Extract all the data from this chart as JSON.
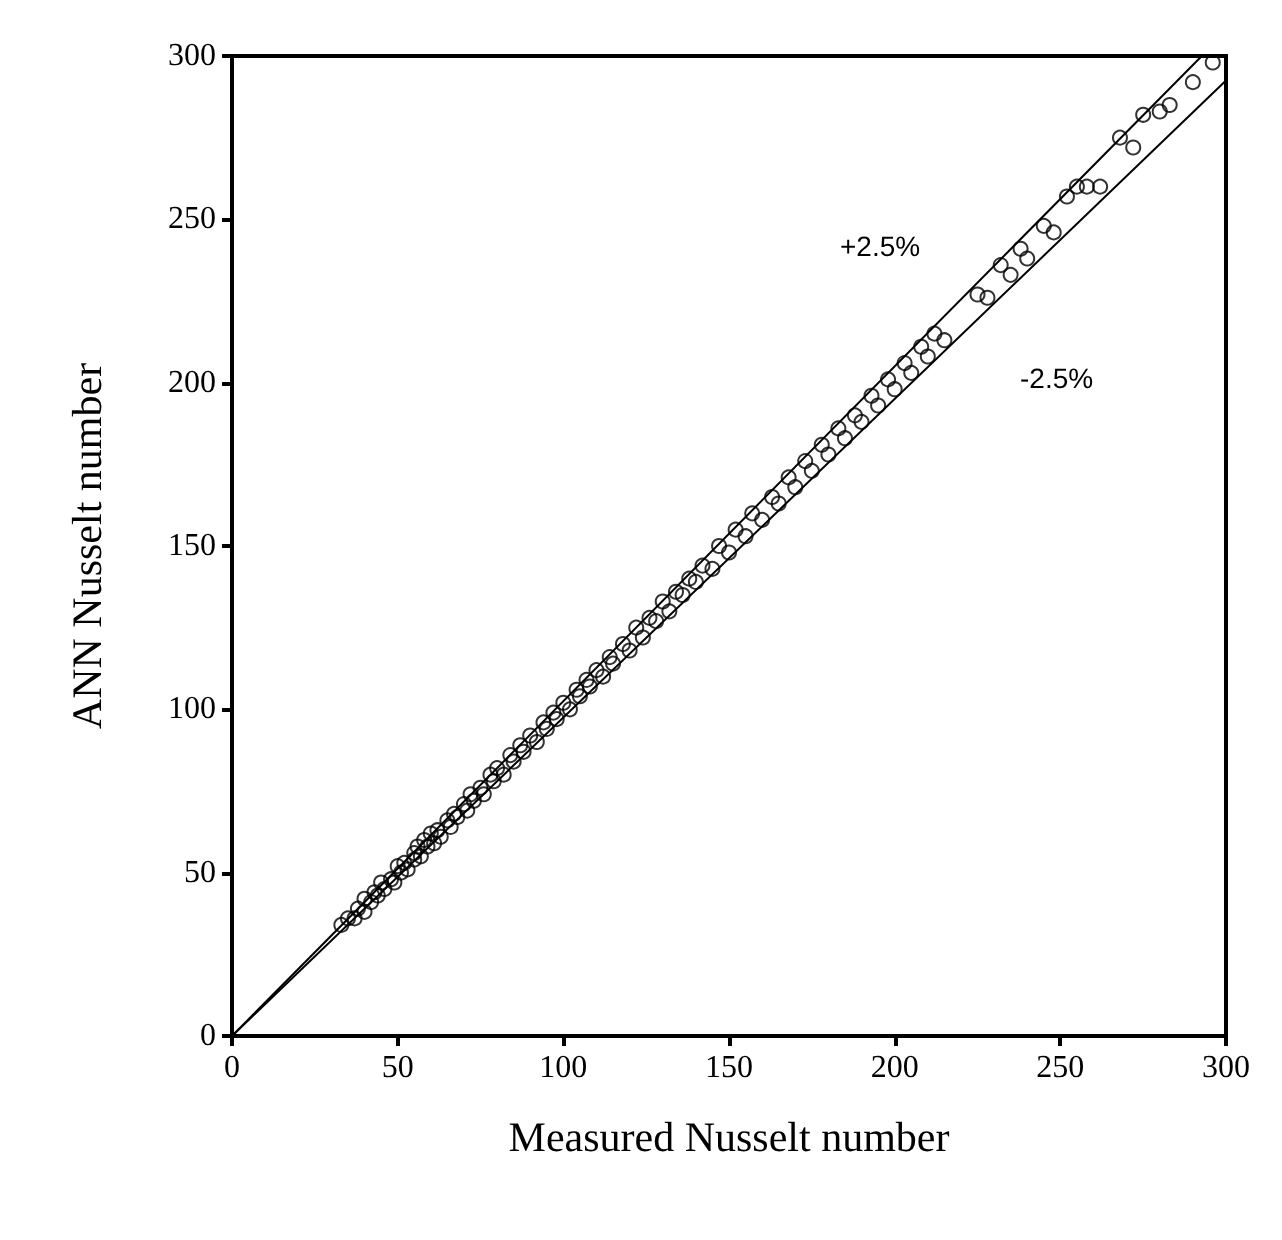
{
  "chart_data": {
    "type": "scatter",
    "xlabel": "Measured Nusselt number",
    "ylabel": "ANN Nusselt number",
    "xlim": [
      0,
      300
    ],
    "ylim": [
      0,
      300
    ],
    "xticks": [
      0,
      50,
      100,
      150,
      200,
      250,
      300
    ],
    "yticks": [
      0,
      50,
      100,
      150,
      200,
      250,
      300
    ],
    "grid": false,
    "marker": "circle",
    "series": [
      {
        "color": "#000000",
        "x": [
          33,
          35,
          37,
          38,
          40,
          40,
          42,
          43,
          44,
          45,
          46,
          48,
          49,
          50,
          51,
          52,
          53,
          55,
          55,
          56,
          57,
          58,
          59,
          60,
          61,
          62,
          63,
          65,
          66,
          67,
          68,
          70,
          71,
          72,
          73,
          75,
          76,
          78,
          79,
          80,
          82,
          84,
          85,
          87,
          88,
          90,
          92,
          94,
          95,
          97,
          98,
          100,
          102,
          104,
          105,
          107,
          108,
          110,
          112,
          114,
          115,
          118,
          120,
          122,
          124,
          126,
          128,
          130,
          132,
          134,
          136,
          138,
          140,
          142,
          145,
          147,
          150,
          152,
          155,
          157,
          160,
          163,
          165,
          168,
          170,
          173,
          175,
          178,
          180,
          183,
          185,
          188,
          190,
          193,
          195,
          198,
          200,
          203,
          205,
          208,
          210,
          212,
          215,
          225,
          228,
          232,
          235,
          238,
          240,
          245,
          248,
          252,
          255,
          258,
          262,
          268,
          272,
          275,
          280,
          283,
          290,
          296
        ],
        "values": [
          34,
          36,
          36,
          39,
          38,
          42,
          41,
          44,
          43,
          47,
          45,
          48,
          47,
          52,
          50,
          53,
          51,
          56,
          54,
          58,
          55,
          60,
          58,
          62,
          59,
          63,
          61,
          66,
          64,
          68,
          67,
          71,
          69,
          74,
          72,
          76,
          74,
          80,
          78,
          82,
          80,
          86,
          84,
          89,
          87,
          92,
          90,
          96,
          94,
          99,
          97,
          102,
          100,
          106,
          104,
          109,
          107,
          112,
          110,
          116,
          114,
          120,
          118,
          125,
          122,
          128,
          127,
          133,
          130,
          136,
          135,
          140,
          139,
          144,
          143,
          150,
          148,
          155,
          153,
          160,
          158,
          165,
          163,
          171,
          168,
          176,
          173,
          181,
          178,
          186,
          183,
          190,
          188,
          196,
          193,
          201,
          198,
          206,
          203,
          211,
          208,
          215,
          213,
          227,
          226,
          236,
          233,
          241,
          238,
          248,
          246,
          257,
          260,
          260,
          260,
          275,
          272,
          282,
          283,
          285,
          292,
          298
        ]
      },
      {
        "type": "line",
        "color": "#000000",
        "x": [
          0,
          292.7
        ],
        "values": [
          0,
          300
        ],
        "marker": "none"
      },
      {
        "type": "line",
        "color": "#000000",
        "x": [
          0,
          300
        ],
        "values": [
          0,
          292.5
        ],
        "marker": "none"
      }
    ],
    "annotations": [
      "+2.5%",
      "-2.5%"
    ]
  }
}
